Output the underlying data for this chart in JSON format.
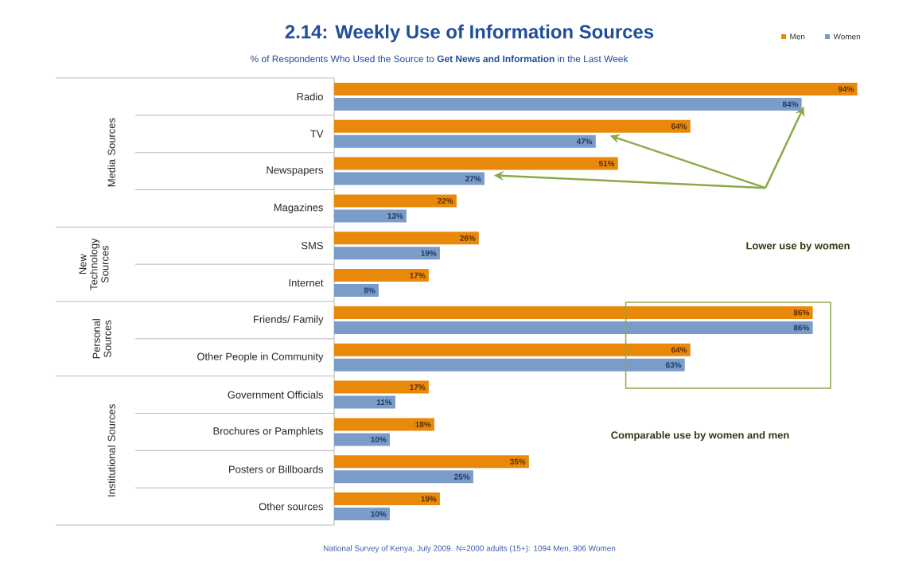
{
  "chart_data": {
    "type": "bar",
    "orientation": "horizontal",
    "title": "2.14: Weekly Use of Information Sources",
    "subtitle": "% of Respondents Who Used the Source to **Get News and Information** in the Last Week",
    "categories": [
      "Radio",
      "TV",
      "Newspapers",
      "Magazines",
      "SMS",
      "Internet",
      "Friends/ Family",
      "Other People in Community",
      "Government Officials",
      "Brochures or Pamphlets",
      "Posters or Billboards",
      "Other sources"
    ],
    "series": [
      {
        "name": "Men",
        "color": "#e8890c",
        "values": [
          94,
          64,
          51,
          22,
          26,
          17,
          86,
          64,
          17,
          18,
          35,
          19
        ],
        "value_labels": [
          "94%",
          "64%",
          "51%",
          "22%",
          "26%",
          "17%",
          "86%",
          "64%",
          "17%",
          "18%",
          "35%",
          "19%"
        ]
      },
      {
        "name": "Women",
        "color": "#7b9cc8",
        "values": [
          84,
          47,
          27,
          13,
          19,
          8,
          86,
          63,
          11,
          10,
          25,
          10
        ],
        "value_labels": [
          "84%",
          "47%",
          "27%",
          "13%",
          "19%",
          "8%",
          "86%",
          "63%",
          "11%",
          "10%",
          "25%",
          "10%"
        ]
      }
    ],
    "legend": "top right",
    "annotations": [
      "Lower use by women",
      "Comparable use by women and men",
      "Media Sources",
      "New Technology Sources",
      "Personal Sources",
      "Institutional Sources",
      "National Survey of Kenya, July 2009. N=2000 adults (15+): 1094 Men, 906 Women"
    ]
  }
}
